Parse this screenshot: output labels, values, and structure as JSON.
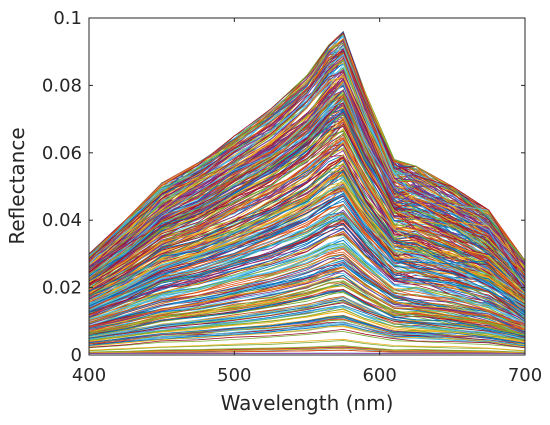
{
  "chart_data": {
    "type": "line",
    "title": "",
    "xlabel": "Wavelength (nm)",
    "ylabel": "Reflectance",
    "xlim": [
      400,
      700
    ],
    "ylim": [
      0,
      0.1
    ],
    "xticks": [
      400,
      500,
      600,
      700
    ],
    "xtick_labels": [
      "400",
      "500",
      "600",
      "700"
    ],
    "yticks": [
      0,
      0.02,
      0.04,
      0.06,
      0.08,
      0.1
    ],
    "ytick_labels": [
      "0",
      "0.02",
      "0.04",
      "0.06",
      "0.08",
      "0.1"
    ],
    "grid": false,
    "legend": "none",
    "x": [
      400,
      425,
      450,
      475,
      500,
      525,
      550,
      565,
      575,
      590,
      610,
      625,
      650,
      675,
      700
    ],
    "envelope_upper": [
      0.03,
      0.04,
      0.051,
      0.057,
      0.065,
      0.073,
      0.083,
      0.092,
      0.096,
      0.078,
      0.058,
      0.056,
      0.05,
      0.043,
      0.028
    ],
    "series_count": 400,
    "series_colors": [
      "#0072bd",
      "#d95319",
      "#edb120",
      "#7e2f8e",
      "#77ac30",
      "#4dbeee",
      "#a2142f"
    ]
  }
}
